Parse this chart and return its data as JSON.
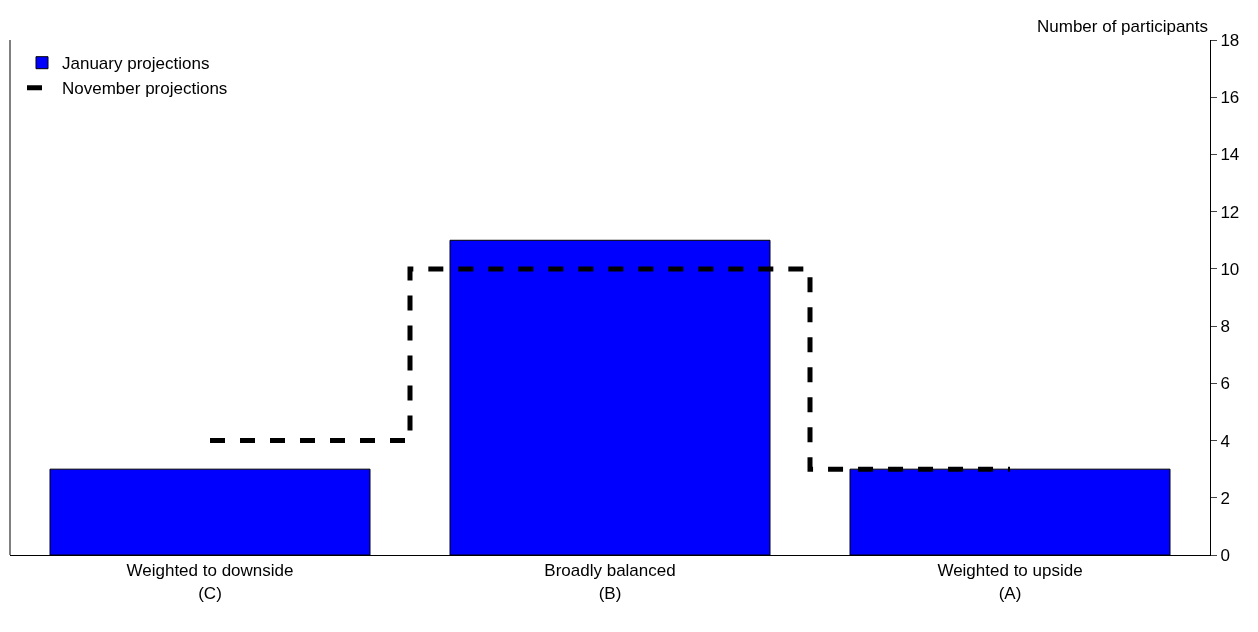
{
  "chart_data": {
    "type": "bar",
    "ylabel": "Number of participants",
    "categories": [
      "Weighted to downside\n(C)",
      "Broadly balanced\n(B)",
      "Weighted to upside\n(A)"
    ],
    "series": [
      {
        "name": "January projections",
        "color": "#0000ff",
        "values": [
          3,
          11,
          3
        ]
      },
      {
        "name": "November projections",
        "type": "step",
        "color": "#000000",
        "line_style": "dashed",
        "values": [
          4,
          10,
          3
        ]
      }
    ],
    "ylim": [
      0,
      18
    ],
    "yticks": [
      0,
      2,
      4,
      6,
      8,
      10,
      12,
      14,
      16,
      18
    ],
    "legend": "top left"
  }
}
